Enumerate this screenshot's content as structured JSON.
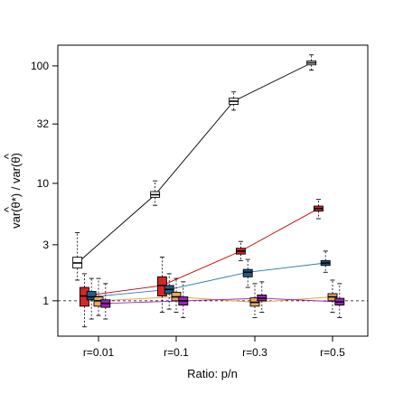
{
  "chart_data": {
    "type": "boxplot",
    "title": "",
    "xlabel": "Ratio: p/n",
    "ylabel_parts": [
      "var(",
      "θ",
      "*) / var(",
      "θ",
      ")"
    ],
    "ylabel_hat": "^",
    "y_scale": "log",
    "ylim": [
      0.5,
      150
    ],
    "y_ticks": [
      1,
      3,
      10,
      32,
      100
    ],
    "y_tick_labels": [
      "1",
      "3",
      "10",
      "32",
      "100"
    ],
    "reference_line": 1,
    "grid": false,
    "legend": "none",
    "categories": [
      "r=0.01",
      "r=0.1",
      "r=0.3",
      "r=0.5"
    ],
    "series": [
      {
        "color": "#ffffff",
        "line_color": "#000000",
        "offset": -0.27,
        "boxes": [
          {
            "min": 1.5,
            "q1": 1.9,
            "median": 2.1,
            "q3": 2.35,
            "max": 3.8
          },
          {
            "min": 6.5,
            "q1": 7.6,
            "median": 8.0,
            "q3": 8.5,
            "max": 10.5
          },
          {
            "min": 42,
            "q1": 47,
            "median": 50,
            "q3": 53,
            "max": 60
          },
          {
            "min": 92,
            "q1": 102,
            "median": 106,
            "q3": 110,
            "max": 124
          }
        ]
      },
      {
        "color": "#d62728",
        "line_color": "#c00000",
        "offset": -0.18,
        "boxes": [
          {
            "min": 0.6,
            "q1": 0.9,
            "median": 1.1,
            "q3": 1.3,
            "max": 1.7
          },
          {
            "min": 0.8,
            "q1": 1.1,
            "median": 1.35,
            "q3": 1.6,
            "max": 2.35
          },
          {
            "min": 2.2,
            "q1": 2.5,
            "median": 2.65,
            "q3": 2.8,
            "max": 3.2
          },
          {
            "min": 5.0,
            "q1": 5.8,
            "median": 6.1,
            "q3": 6.4,
            "max": 7.3
          }
        ]
      },
      {
        "color": "#1f5f8b",
        "line_color": "#2a7ab0",
        "offset": -0.09,
        "boxes": [
          {
            "min": 0.7,
            "q1": 1.02,
            "median": 1.08,
            "q3": 1.2,
            "max": 1.55
          },
          {
            "min": 0.85,
            "q1": 1.15,
            "median": 1.25,
            "q3": 1.35,
            "max": 1.7
          },
          {
            "min": 1.3,
            "q1": 1.6,
            "median": 1.75,
            "q3": 1.85,
            "max": 2.25
          },
          {
            "min": 1.75,
            "q1": 2.0,
            "median": 2.1,
            "q3": 2.2,
            "max": 2.65
          }
        ]
      },
      {
        "color": "#e8a860",
        "line_color": "#e8a030",
        "offset": 0.0,
        "boxes": [
          {
            "min": 0.75,
            "q1": 0.9,
            "median": 1.0,
            "q3": 1.08,
            "max": 1.55
          },
          {
            "min": 0.8,
            "q1": 1.0,
            "median": 1.08,
            "q3": 1.18,
            "max": 1.55
          },
          {
            "min": 0.72,
            "q1": 0.9,
            "median": 0.97,
            "q3": 1.06,
            "max": 1.4
          },
          {
            "min": 0.8,
            "q1": 1.0,
            "median": 1.08,
            "q3": 1.15,
            "max": 1.5
          }
        ]
      },
      {
        "color": "#a020c0",
        "line_color": "#a020c0",
        "offset": 0.09,
        "boxes": [
          {
            "min": 0.7,
            "q1": 0.88,
            "median": 0.95,
            "q3": 1.02,
            "max": 1.4
          },
          {
            "min": 0.72,
            "q1": 0.92,
            "median": 1.0,
            "q3": 1.08,
            "max": 1.45
          },
          {
            "min": 0.8,
            "q1": 1.0,
            "median": 1.05,
            "q3": 1.12,
            "max": 1.45
          },
          {
            "min": 0.72,
            "q1": 0.92,
            "median": 0.98,
            "q3": 1.05,
            "max": 1.4
          }
        ]
      }
    ]
  }
}
